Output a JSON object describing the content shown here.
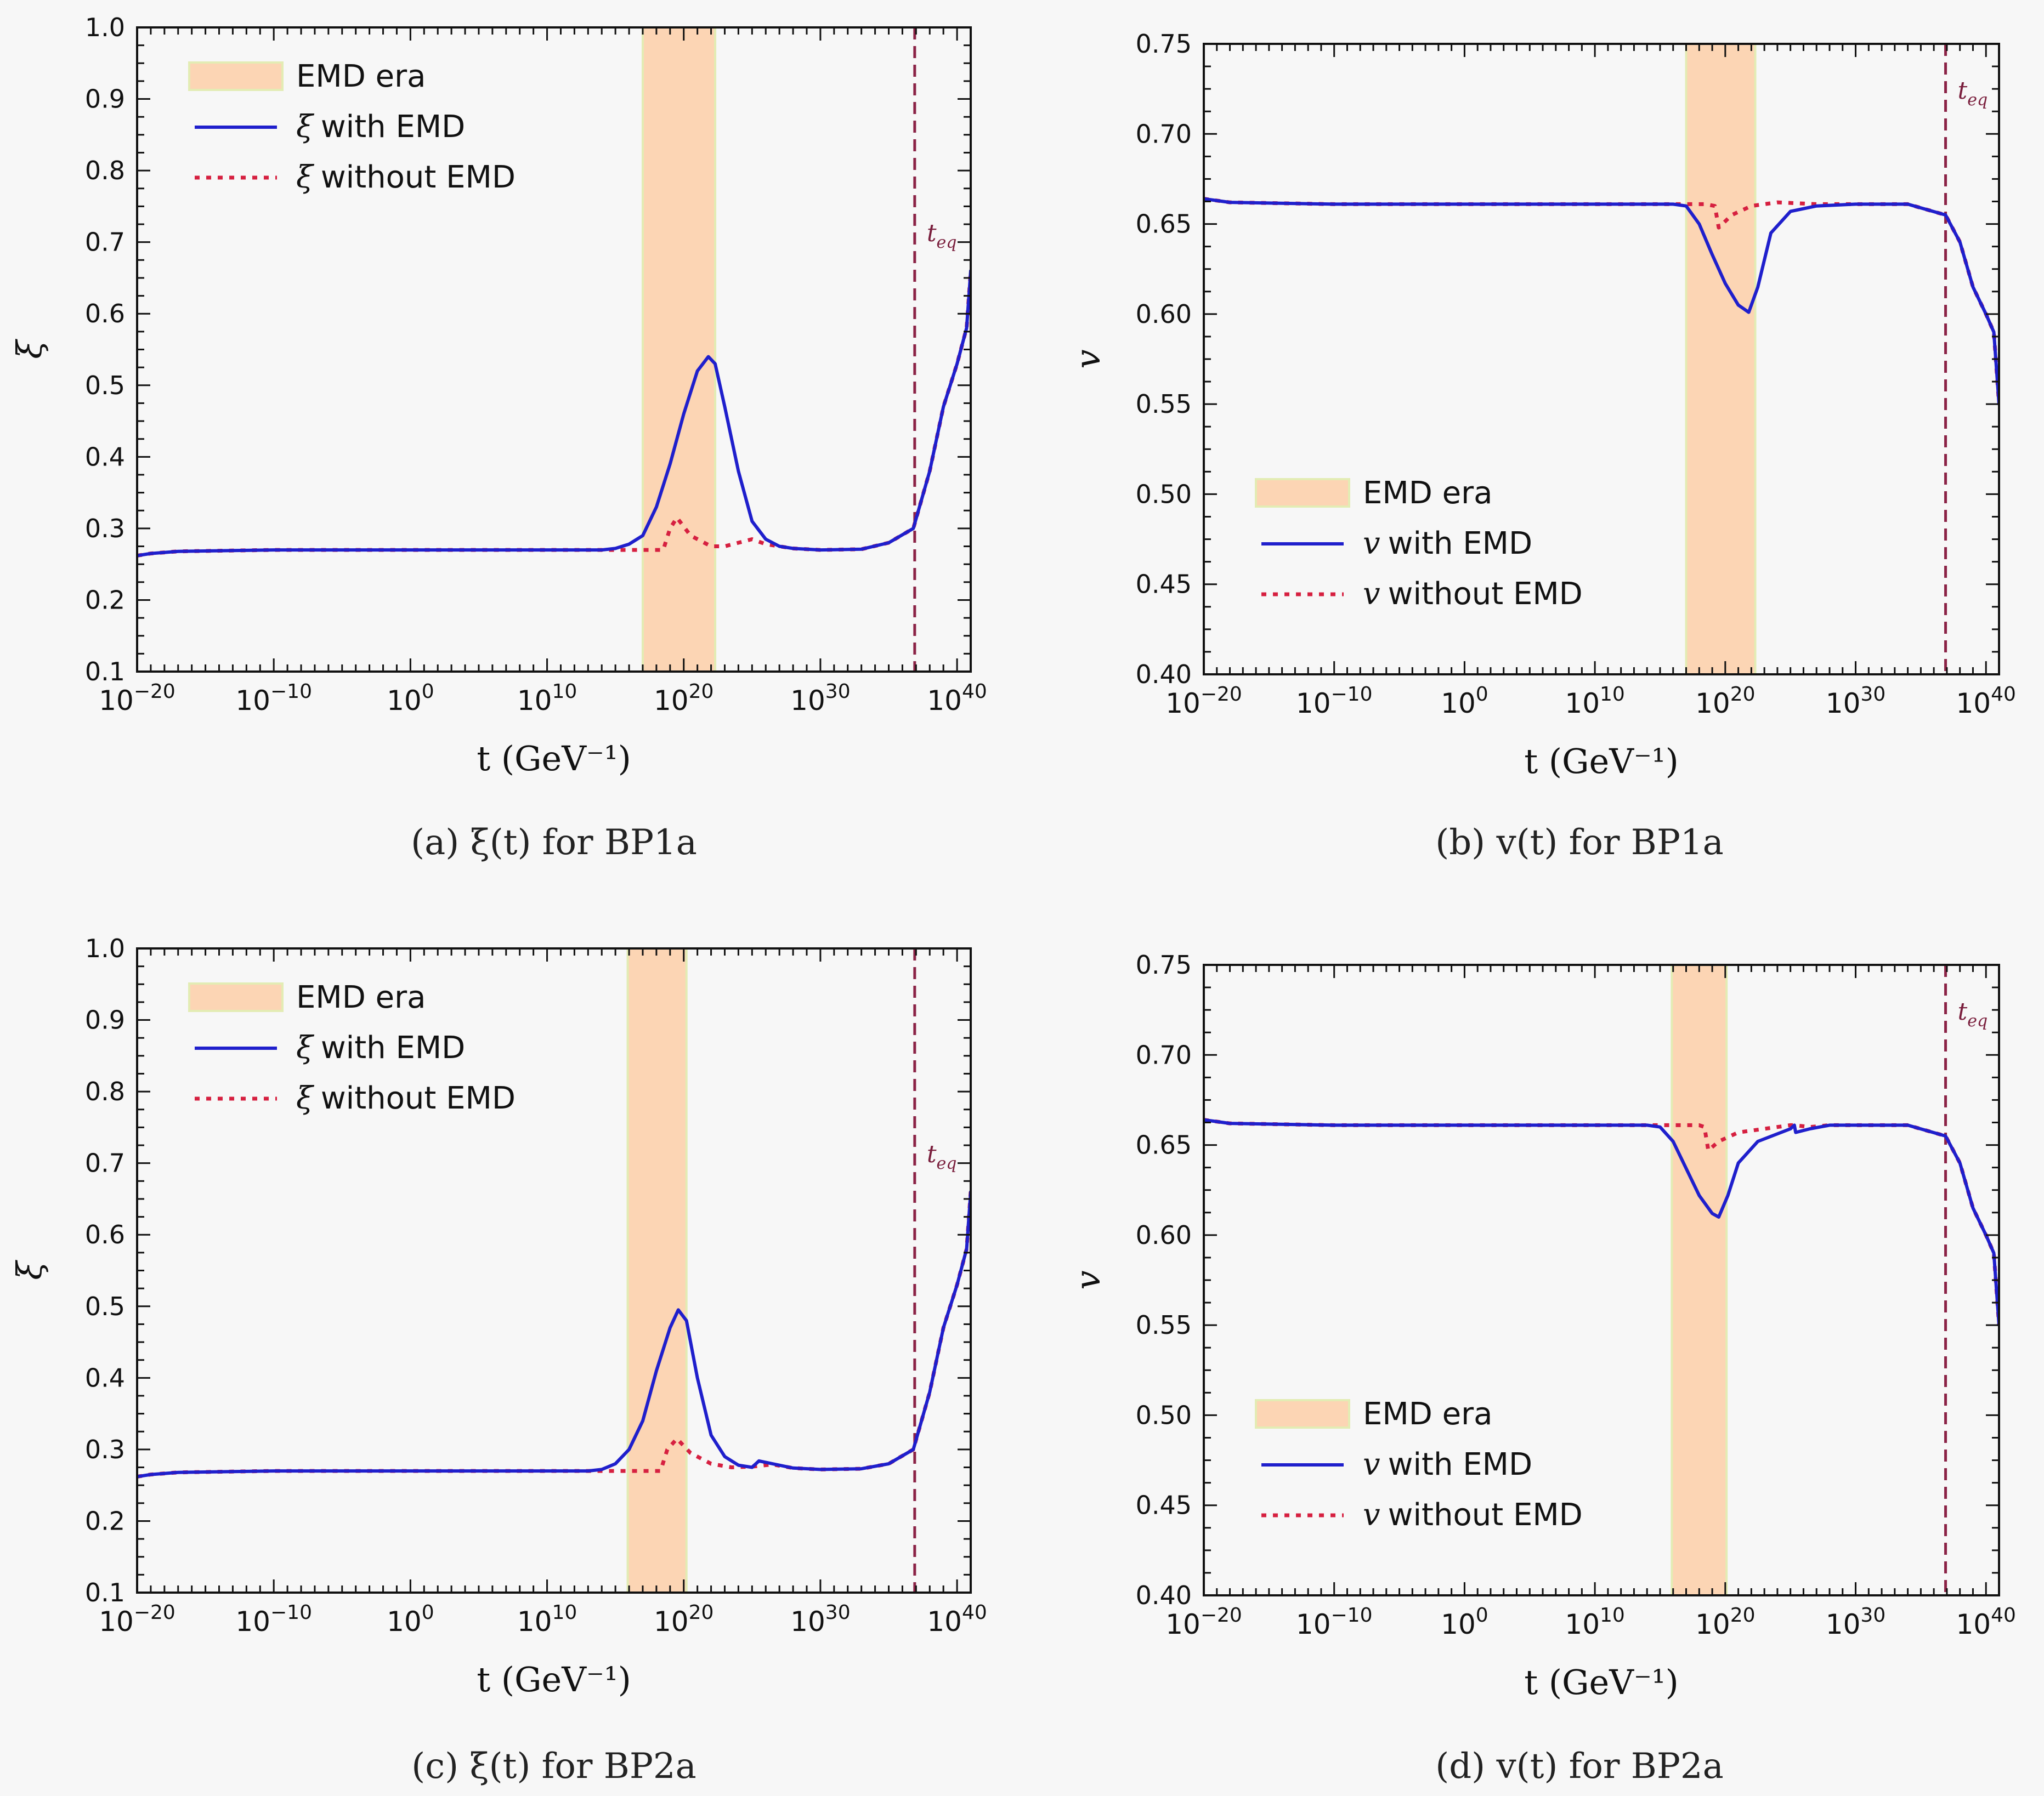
{
  "chart_data": [
    {
      "type": "line",
      "caption": "(a) ξ(t) for BP1a",
      "xlabel": "t (GeV⁻¹)",
      "ylabel": "ξ",
      "xscale": "log",
      "xlim_log10": [
        -20,
        41
      ],
      "ylim": [
        0.1,
        1.0
      ],
      "yticks": [
        0.1,
        0.2,
        0.3,
        0.4,
        0.5,
        0.6,
        0.7,
        0.8,
        0.9,
        1.0
      ],
      "ytick_labels": [
        "0.1",
        "0.2",
        "0.3",
        "0.4",
        "0.5",
        "0.6",
        "0.7",
        "0.8",
        "0.9",
        "1.0"
      ],
      "xticks_log10": [
        -20,
        -10,
        0,
        10,
        20,
        30,
        40
      ],
      "xtick_bases": [
        "10",
        "10",
        "10",
        "10",
        "10",
        "10",
        "10"
      ],
      "xtick_exps": [
        "−20",
        "−10",
        "0",
        "10",
        "20",
        "30",
        "40"
      ],
      "emd_band_log10": [
        17,
        22.3
      ],
      "teq_log10": 36.9,
      "teq_label": "t",
      "teq_sub": "eq",
      "legend_position": "upper-left",
      "legend": {
        "band": "EMD era",
        "with_sym": "ξ",
        "with_rest": "with EMD",
        "without_sym": "ξ",
        "without_rest": "without EMD"
      },
      "series": [
        {
          "name": "ξ with EMD",
          "color": "#1f1fcc",
          "style": "solid",
          "points": [
            [
              -20,
              0.262
            ],
            [
              -19,
              0.265
            ],
            [
              -17,
              0.268
            ],
            [
              -10,
              0.27
            ],
            [
              0,
              0.27
            ],
            [
              14,
              0.27
            ],
            [
              15,
              0.272
            ],
            [
              16,
              0.278
            ],
            [
              17,
              0.29
            ],
            [
              18,
              0.33
            ],
            [
              19,
              0.39
            ],
            [
              20,
              0.46
            ],
            [
              21,
              0.52
            ],
            [
              21.8,
              0.54
            ],
            [
              22.3,
              0.53
            ],
            [
              23,
              0.47
            ],
            [
              24,
              0.38
            ],
            [
              25,
              0.31
            ],
            [
              26,
              0.285
            ],
            [
              27,
              0.275
            ],
            [
              28,
              0.272
            ],
            [
              30,
              0.27
            ],
            [
              33,
              0.271
            ],
            [
              35,
              0.28
            ],
            [
              36.8,
              0.3
            ],
            [
              38,
              0.38
            ],
            [
              39,
              0.47
            ],
            [
              40,
              0.53
            ],
            [
              40.7,
              0.58
            ],
            [
              41,
              0.66
            ]
          ]
        },
        {
          "name": "ξ without EMD",
          "color": "#d62040",
          "style": "dotted",
          "points": [
            [
              -20,
              0.262
            ],
            [
              -19,
              0.265
            ],
            [
              -17,
              0.268
            ],
            [
              -10,
              0.27
            ],
            [
              0,
              0.27
            ],
            [
              15,
              0.27
            ],
            [
              18.5,
              0.27
            ],
            [
              19,
              0.3
            ],
            [
              19.5,
              0.315
            ],
            [
              20.5,
              0.29
            ],
            [
              22,
              0.275
            ],
            [
              23,
              0.275
            ],
            [
              24,
              0.28
            ],
            [
              25,
              0.285
            ],
            [
              26,
              0.278
            ],
            [
              28,
              0.272
            ],
            [
              30,
              0.27
            ],
            [
              33,
              0.271
            ],
            [
              35,
              0.28
            ],
            [
              36.8,
              0.3
            ],
            [
              38,
              0.38
            ],
            [
              39,
              0.47
            ],
            [
              40,
              0.53
            ],
            [
              40.7,
              0.58
            ],
            [
              41,
              0.66
            ]
          ]
        }
      ]
    },
    {
      "type": "line",
      "caption": "(b) v(t) for BP1a",
      "xlabel": "t (GeV⁻¹)",
      "ylabel": "v",
      "xscale": "log",
      "xlim_log10": [
        -20,
        41
      ],
      "ylim": [
        0.4,
        0.75
      ],
      "yticks": [
        0.4,
        0.45,
        0.5,
        0.55,
        0.6,
        0.65,
        0.7,
        0.75
      ],
      "ytick_labels": [
        "0.40",
        "0.45",
        "0.50",
        "0.55",
        "0.60",
        "0.65",
        "0.70",
        "0.75"
      ],
      "xticks_log10": [
        -20,
        -10,
        0,
        10,
        20,
        30,
        40
      ],
      "xtick_bases": [
        "10",
        "10",
        "10",
        "10",
        "10",
        "10",
        "10"
      ],
      "xtick_exps": [
        "−20",
        "−10",
        "0",
        "10",
        "20",
        "30",
        "40"
      ],
      "emd_band_log10": [
        17,
        22.3
      ],
      "teq_log10": 36.9,
      "teq_label": "t",
      "teq_sub": "eq",
      "legend_position": "lower-left",
      "legend": {
        "band": "EMD era",
        "with_sym": "v",
        "with_rest": "with EMD",
        "without_sym": "v",
        "without_rest": "without EMD"
      },
      "series": [
        {
          "name": "v with EMD",
          "color": "#1f1fcc",
          "style": "solid",
          "points": [
            [
              -20,
              0.664
            ],
            [
              -18,
              0.662
            ],
            [
              -10,
              0.661
            ],
            [
              0,
              0.661
            ],
            [
              16,
              0.661
            ],
            [
              17,
              0.66
            ],
            [
              18,
              0.65
            ],
            [
              19,
              0.633
            ],
            [
              20,
              0.617
            ],
            [
              21,
              0.605
            ],
            [
              21.8,
              0.601
            ],
            [
              22.5,
              0.615
            ],
            [
              23.5,
              0.645
            ],
            [
              25,
              0.657
            ],
            [
              27,
              0.66
            ],
            [
              30,
              0.661
            ],
            [
              34,
              0.661
            ],
            [
              36.9,
              0.655
            ],
            [
              38,
              0.64
            ],
            [
              39,
              0.615
            ],
            [
              40,
              0.6
            ],
            [
              40.6,
              0.59
            ],
            [
              41,
              0.55
            ]
          ]
        },
        {
          "name": "v without EMD",
          "color": "#d62040",
          "style": "dotted",
          "points": [
            [
              -20,
              0.664
            ],
            [
              -18,
              0.662
            ],
            [
              -10,
              0.661
            ],
            [
              0,
              0.661
            ],
            [
              18.5,
              0.661
            ],
            [
              19.2,
              0.66
            ],
            [
              19.5,
              0.648
            ],
            [
              20.5,
              0.655
            ],
            [
              22,
              0.66
            ],
            [
              24,
              0.662
            ],
            [
              27,
              0.661
            ],
            [
              30,
              0.661
            ],
            [
              34,
              0.661
            ],
            [
              36.9,
              0.655
            ],
            [
              38,
              0.64
            ],
            [
              39,
              0.615
            ],
            [
              40,
              0.6
            ],
            [
              40.6,
              0.59
            ],
            [
              41,
              0.55
            ]
          ]
        }
      ]
    },
    {
      "type": "line",
      "caption": "(c) ξ(t) for BP2a",
      "xlabel": "t (GeV⁻¹)",
      "ylabel": "ξ",
      "xscale": "log",
      "xlim_log10": [
        -20,
        41
      ],
      "ylim": [
        0.1,
        1.0
      ],
      "yticks": [
        0.1,
        0.2,
        0.3,
        0.4,
        0.5,
        0.6,
        0.7,
        0.8,
        0.9,
        1.0
      ],
      "ytick_labels": [
        "0.1",
        "0.2",
        "0.3",
        "0.4",
        "0.5",
        "0.6",
        "0.7",
        "0.8",
        "0.9",
        "1.0"
      ],
      "xticks_log10": [
        -20,
        -10,
        0,
        10,
        20,
        30,
        40
      ],
      "xtick_bases": [
        "10",
        "10",
        "10",
        "10",
        "10",
        "10",
        "10"
      ],
      "xtick_exps": [
        "−20",
        "−10",
        "0",
        "10",
        "20",
        "30",
        "40"
      ],
      "emd_band_log10": [
        15.9,
        20.2
      ],
      "teq_log10": 36.9,
      "teq_label": "t",
      "teq_sub": "eq",
      "legend_position": "upper-left",
      "legend": {
        "band": "EMD era",
        "with_sym": "ξ",
        "with_rest": "with EMD",
        "without_sym": "ξ",
        "without_rest": "without EMD"
      },
      "series": [
        {
          "name": "ξ with EMD",
          "color": "#1f1fcc",
          "style": "solid",
          "points": [
            [
              -20,
              0.262
            ],
            [
              -19,
              0.265
            ],
            [
              -17,
              0.268
            ],
            [
              -10,
              0.27
            ],
            [
              0,
              0.27
            ],
            [
              13,
              0.27
            ],
            [
              14,
              0.272
            ],
            [
              15,
              0.28
            ],
            [
              16,
              0.3
            ],
            [
              17,
              0.34
            ],
            [
              18,
              0.41
            ],
            [
              19,
              0.47
            ],
            [
              19.6,
              0.495
            ],
            [
              20.2,
              0.48
            ],
            [
              21,
              0.4
            ],
            [
              22,
              0.32
            ],
            [
              23,
              0.29
            ],
            [
              24,
              0.278
            ],
            [
              25,
              0.275
            ],
            [
              25.5,
              0.284
            ],
            [
              26.5,
              0.28
            ],
            [
              28,
              0.274
            ],
            [
              30,
              0.272
            ],
            [
              33,
              0.273
            ],
            [
              35,
              0.28
            ],
            [
              36.8,
              0.3
            ],
            [
              38,
              0.38
            ],
            [
              39,
              0.47
            ],
            [
              40,
              0.53
            ],
            [
              40.7,
              0.58
            ],
            [
              41,
              0.66
            ]
          ]
        },
        {
          "name": "ξ without EMD",
          "color": "#d62040",
          "style": "dotted",
          "points": [
            [
              -20,
              0.262
            ],
            [
              -19,
              0.265
            ],
            [
              -17,
              0.268
            ],
            [
              -10,
              0.27
            ],
            [
              0,
              0.27
            ],
            [
              14,
              0.27
            ],
            [
              18.3,
              0.27
            ],
            [
              18.8,
              0.3
            ],
            [
              19.5,
              0.315
            ],
            [
              20.5,
              0.295
            ],
            [
              22,
              0.28
            ],
            [
              23.5,
              0.275
            ],
            [
              25,
              0.276
            ],
            [
              26.5,
              0.279
            ],
            [
              28,
              0.274
            ],
            [
              30,
              0.272
            ],
            [
              33,
              0.273
            ],
            [
              35,
              0.28
            ],
            [
              36.8,
              0.3
            ],
            [
              38,
              0.38
            ],
            [
              39,
              0.47
            ],
            [
              40,
              0.53
            ],
            [
              40.7,
              0.58
            ],
            [
              41,
              0.66
            ]
          ]
        }
      ]
    },
    {
      "type": "line",
      "caption": "(d) v(t) for BP2a",
      "xlabel": "t (GeV⁻¹)",
      "ylabel": "v",
      "xscale": "log",
      "xlim_log10": [
        -20,
        41
      ],
      "ylim": [
        0.4,
        0.75
      ],
      "yticks": [
        0.4,
        0.45,
        0.5,
        0.55,
        0.6,
        0.65,
        0.7,
        0.75
      ],
      "ytick_labels": [
        "0.40",
        "0.45",
        "0.50",
        "0.55",
        "0.60",
        "0.65",
        "0.70",
        "0.75"
      ],
      "xticks_log10": [
        -20,
        -10,
        0,
        10,
        20,
        30,
        40
      ],
      "xtick_bases": [
        "10",
        "10",
        "10",
        "10",
        "10",
        "10",
        "10"
      ],
      "xtick_exps": [
        "−20",
        "−10",
        "0",
        "10",
        "20",
        "30",
        "40"
      ],
      "emd_band_log10": [
        15.9,
        20.1
      ],
      "teq_log10": 36.9,
      "teq_label": "t",
      "teq_sub": "eq",
      "legend_position": "lower-left",
      "legend": {
        "band": "EMD era",
        "with_sym": "v",
        "with_rest": "with EMD",
        "without_sym": "v",
        "without_rest": "without EMD"
      },
      "series": [
        {
          "name": "v with EMD",
          "color": "#1f1fcc",
          "style": "solid",
          "points": [
            [
              -20,
              0.664
            ],
            [
              -18,
              0.662
            ],
            [
              -10,
              0.661
            ],
            [
              0,
              0.661
            ],
            [
              14,
              0.661
            ],
            [
              15,
              0.66
            ],
            [
              16,
              0.652
            ],
            [
              17,
              0.637
            ],
            [
              18,
              0.622
            ],
            [
              19,
              0.612
            ],
            [
              19.5,
              0.61
            ],
            [
              20.2,
              0.622
            ],
            [
              21,
              0.64
            ],
            [
              22.5,
              0.652
            ],
            [
              25,
              0.659
            ],
            [
              25.3,
              0.661
            ],
            [
              25.4,
              0.657
            ],
            [
              26.5,
              0.659
            ],
            [
              28,
              0.661
            ],
            [
              34,
              0.661
            ],
            [
              36.9,
              0.655
            ],
            [
              38,
              0.64
            ],
            [
              39,
              0.615
            ],
            [
              40,
              0.6
            ],
            [
              40.6,
              0.59
            ],
            [
              41,
              0.55
            ]
          ]
        },
        {
          "name": "v without EMD",
          "color": "#d62040",
          "style": "dotted",
          "points": [
            [
              -20,
              0.664
            ],
            [
              -18,
              0.662
            ],
            [
              -10,
              0.661
            ],
            [
              0,
              0.661
            ],
            [
              18,
              0.661
            ],
            [
              18.4,
              0.66
            ],
            [
              18.7,
              0.647
            ],
            [
              19.5,
              0.652
            ],
            [
              21,
              0.657
            ],
            [
              23,
              0.659
            ],
            [
              25,
              0.661
            ],
            [
              25.3,
              0.661
            ],
            [
              26.5,
              0.66
            ],
            [
              28,
              0.661
            ],
            [
              34,
              0.661
            ],
            [
              36.9,
              0.655
            ],
            [
              38,
              0.64
            ],
            [
              39,
              0.615
            ],
            [
              40,
              0.6
            ],
            [
              40.6,
              0.59
            ],
            [
              41,
              0.55
            ]
          ]
        }
      ]
    }
  ]
}
